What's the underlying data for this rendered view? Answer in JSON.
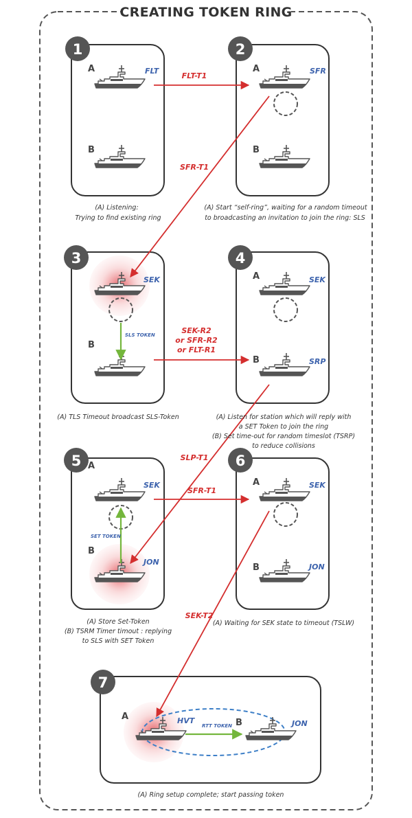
{
  "title": "CREATING TOKEN RING",
  "colors": {
    "frame": "#555555",
    "box": "#333333",
    "badge": "#555555",
    "ship": "#555555",
    "state_label": "#3d63ad",
    "message_arrow": "#d42e2e",
    "token_arrow": "#74b63c",
    "ring_ellipse": "#3d7fc7",
    "pulse": "#e0474d"
  },
  "steps": [
    {
      "number": "1",
      "ship_a_label": "A",
      "ship_a_state": "FLT",
      "ship_b_label": "B",
      "ship_b_state": "",
      "caption": [
        "(A) Listening:",
        "Trying to find existing ring"
      ]
    },
    {
      "number": "2",
      "ship_a_label": "A",
      "ship_a_state": "SFR",
      "ship_b_label": "B",
      "ship_b_state": "",
      "caption": [
        "(A) Start “self-ring”, waiting for a random timeout",
        "to broadcasting an invitation to join the ring: SLS"
      ]
    },
    {
      "number": "3",
      "ship_a_label": "",
      "ship_a_state": "SEK",
      "ship_b_label": "B",
      "ship_b_state": "",
      "token_label": "SLS TOKEN",
      "caption": [
        "(A) TLS Timeout broadcast SLS-Token"
      ]
    },
    {
      "number": "4",
      "ship_a_label": "A",
      "ship_a_state": "SEK",
      "ship_b_label": "B",
      "ship_b_state": "SRP",
      "caption": [
        "(A) Listen for station which will reply with",
        "a SET Token to join the ring",
        "(B) Set time-out for random timeslot (TSRP)",
        "to reduce collisions"
      ]
    },
    {
      "number": "5",
      "ship_a_label": "A",
      "ship_a_state": "SEK",
      "ship_b_label": "B",
      "ship_b_state": "JON",
      "token_label": "SET TOKEN",
      "caption": [
        "(A) Store Set-Token",
        "(B) TSRM Timer timout : replying",
        "to SLS with SET Token"
      ]
    },
    {
      "number": "6",
      "ship_a_label": "A",
      "ship_a_state": "SEK",
      "ship_b_label": "B",
      "ship_b_state": "JON",
      "caption": [
        "(A) Waiting for SEK state to timeout (TSLW)"
      ]
    },
    {
      "number": "7",
      "ship_a_label": "A",
      "ship_a_state": "HVT",
      "ship_b_label": "B",
      "ship_b_state": "JON",
      "token_label": "RTT TOKEN",
      "caption": [
        "(A) Ring setup complete; start passing token"
      ]
    }
  ],
  "messages": {
    "flt_t1": [
      "FLT-T1"
    ],
    "sfr_t1_a": [
      "SFR-T1"
    ],
    "sek_r2": [
      "SEK-R2",
      "or SFR-R2",
      "or FLT-R1"
    ],
    "slp_t1": [
      "SLP-T1"
    ],
    "sfr_t1_b": [
      "SFR-T1"
    ],
    "sek_t2": [
      "SEK-T2"
    ]
  }
}
